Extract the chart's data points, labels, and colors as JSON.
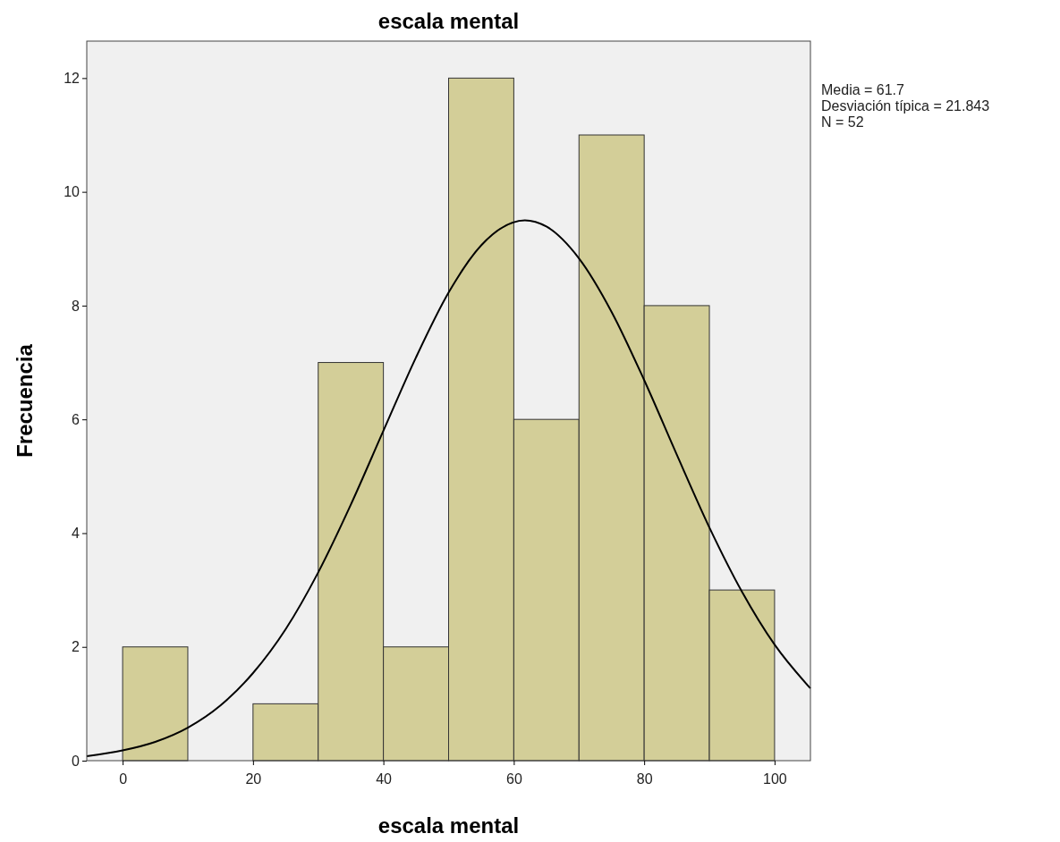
{
  "chart_data": {
    "type": "histogram",
    "title": "escala mental",
    "xlabel": "escala mental",
    "ylabel": "Frecuencia",
    "bins": [
      0,
      10,
      20,
      30,
      40,
      50,
      60,
      70,
      80,
      90,
      100
    ],
    "values": [
      2,
      0,
      1,
      7,
      2,
      12,
      6,
      11,
      8,
      3
    ],
    "color": "#d3ce98",
    "series": [
      {
        "type": "line",
        "color": "#000000",
        "x": [
          -5.5,
          0,
          5,
          10,
          15,
          20,
          25,
          30,
          35,
          40,
          45,
          50,
          55,
          61.7,
          65,
          70,
          75,
          80,
          85,
          90,
          95,
          100,
          105.5
        ],
        "values": [
          0.08,
          0.18,
          0.33,
          0.58,
          0.97,
          1.54,
          2.31,
          3.31,
          4.5,
          5.8,
          7.09,
          8.23,
          9.06,
          9.5,
          9.39,
          8.83,
          7.89,
          6.69,
          5.38,
          4.1,
          2.97,
          2.04,
          1.27
        ]
      }
    ],
    "xlim": [
      -5.5,
      105.5
    ],
    "ylim": [
      0,
      12.65
    ],
    "xticks": [
      0,
      20,
      40,
      60,
      80,
      100
    ],
    "yticks": [
      0,
      2,
      4,
      6,
      8,
      10,
      12
    ],
    "grid": false,
    "annotations": [
      "Media = 61.7",
      "Desviación típica = 21.843",
      "N = 52"
    ]
  }
}
